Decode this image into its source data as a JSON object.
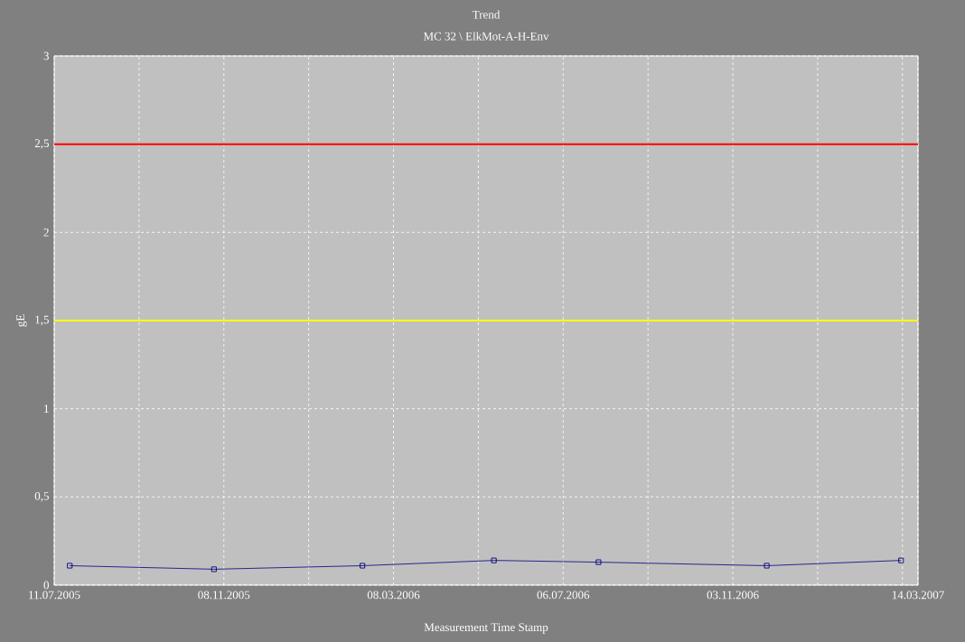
{
  "chart_data": {
    "type": "line",
    "title": "Trend",
    "subtitle": "MC 32 \\ ElkMot-A-H-Env",
    "xlabel": "Measurement Time Stamp",
    "ylabel": "gE",
    "x": [
      "2005-07-22",
      "2005-11-01",
      "2006-02-14",
      "2006-05-18",
      "2006-07-31",
      "2006-11-27",
      "2007-03-02"
    ],
    "series": [
      {
        "color": "#000080",
        "values": [
          0.11,
          0.09,
          0.11,
          0.14,
          0.13,
          0.11,
          0.14
        ]
      }
    ],
    "xlim": [
      "2005-07-11",
      "2007-03-14"
    ],
    "xticks": [
      {
        "value": "2005-07-11",
        "label": "11.07.2005"
      },
      {
        "value": "2005-09-09",
        "label": null
      },
      {
        "value": "2005-11-08",
        "label": "08.11.2005"
      },
      {
        "value": "2006-01-07",
        "label": null
      },
      {
        "value": "2006-03-08",
        "label": "08.03.2006"
      },
      {
        "value": "2006-05-07",
        "label": null
      },
      {
        "value": "2006-07-06",
        "label": "06.07.2006"
      },
      {
        "value": "2006-09-04",
        "label": null
      },
      {
        "value": "2006-11-03",
        "label": "03.11.2006"
      },
      {
        "value": "2007-01-02",
        "label": null
      },
      {
        "value": "2007-03-03",
        "label": null
      },
      {
        "value": "2007-03-14",
        "label": "14.03.2007"
      }
    ],
    "ylim": [
      0,
      3
    ],
    "yticks": [
      0,
      {
        "value": 0.5,
        "label": "0,5"
      },
      1,
      {
        "value": 1.5,
        "label": "1,5"
      },
      2,
      {
        "value": 2.5,
        "label": "2,5"
      },
      3
    ],
    "ref_lines": [
      {
        "axis": "y",
        "value": 2.5,
        "color": "#ff0000"
      },
      {
        "axis": "y",
        "value": 1.5,
        "color": "#ffff00"
      }
    ],
    "grid": true,
    "marker": "square",
    "line_style": "solid"
  }
}
